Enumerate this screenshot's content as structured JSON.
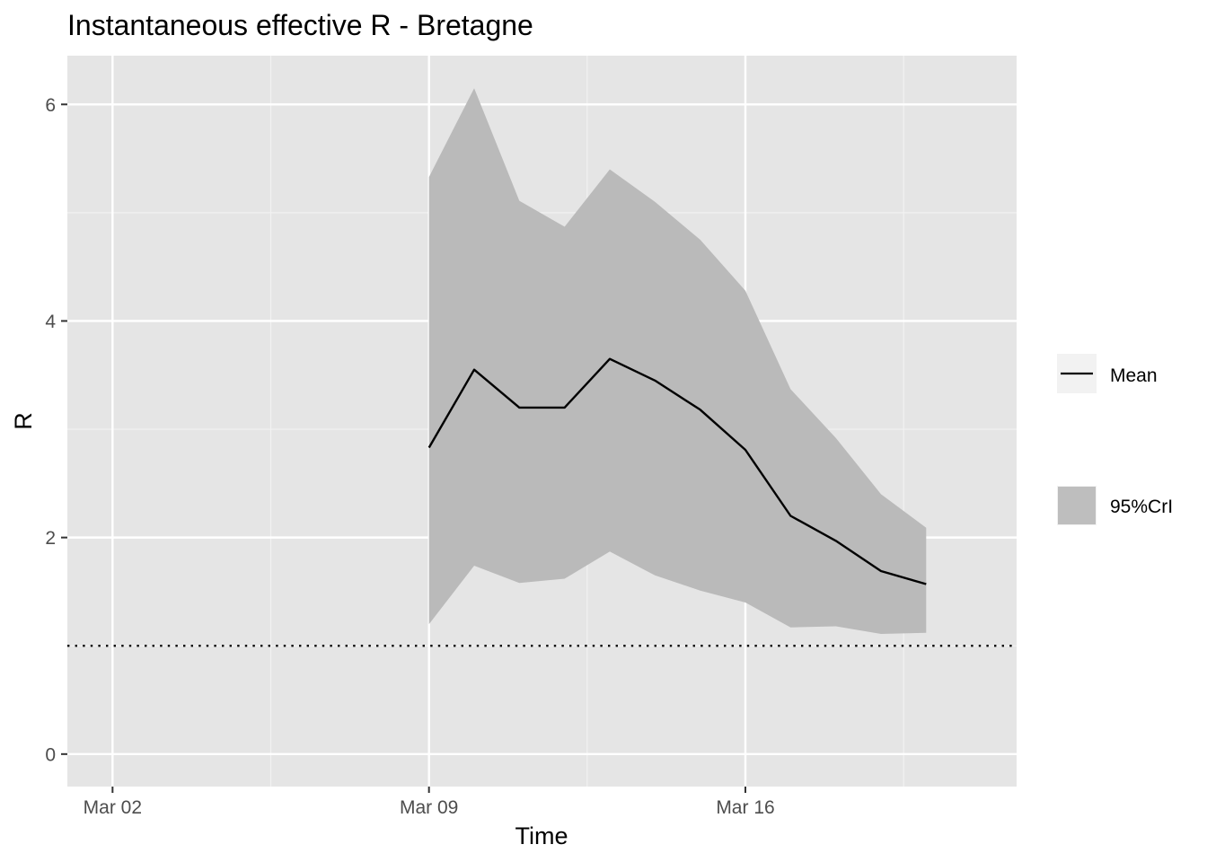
{
  "chart_data": {
    "type": "line",
    "title": "Instantaneous effective R -  Bretagne",
    "xlabel": "Time",
    "ylabel": "R",
    "x_tick_labels": [
      "Mar 02",
      "Mar 09",
      "Mar 16"
    ],
    "x_ticks": [
      "2020-03-02",
      "2020-03-09",
      "2020-03-16"
    ],
    "xlim": [
      "2020-03-01",
      "2020-03-22"
    ],
    "y_ticks": [
      0,
      2,
      4,
      6
    ],
    "ylim": [
      -0.3,
      6.45
    ],
    "grid": true,
    "reference_line": {
      "y": 1,
      "style": "dotted"
    },
    "x": [
      "2020-03-09",
      "2020-03-10",
      "2020-03-11",
      "2020-03-12",
      "2020-03-13",
      "2020-03-14",
      "2020-03-15",
      "2020-03-16",
      "2020-03-17",
      "2020-03-18",
      "2020-03-19",
      "2020-03-20"
    ],
    "series": [
      {
        "name": "Mean",
        "kind": "line",
        "color": "#000000",
        "values": [
          2.83,
          3.55,
          3.2,
          3.2,
          3.65,
          3.45,
          3.18,
          2.81,
          2.2,
          1.97,
          1.69,
          1.57
        ]
      },
      {
        "name": "95%CrI",
        "kind": "ribbon",
        "color": "#bababa",
        "lower": [
          1.2,
          1.74,
          1.58,
          1.62,
          1.87,
          1.65,
          1.51,
          1.4,
          1.17,
          1.18,
          1.11,
          1.12
        ],
        "upper": [
          5.33,
          6.15,
          5.11,
          4.87,
          5.4,
          5.1,
          4.75,
          4.28,
          3.37,
          2.92,
          2.4,
          2.09
        ]
      }
    ],
    "legend": {
      "position": "right",
      "entries": [
        "Mean",
        "95%CrI"
      ]
    }
  }
}
